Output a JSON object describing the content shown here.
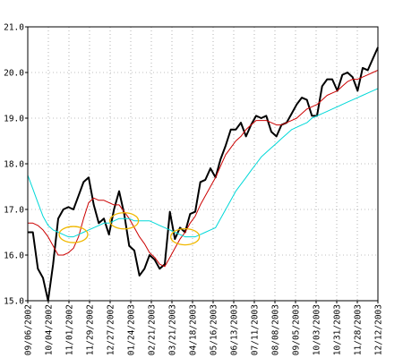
{
  "chart_data": {
    "type": "line",
    "title": "",
    "xlabel": "",
    "ylabel": "",
    "ylim": [
      15.0,
      21.0
    ],
    "yticks": [
      15.0,
      16.0,
      17.0,
      18.0,
      19.0,
      20.0,
      21.0
    ],
    "ytick_labels": [
      "15.0",
      "16.0",
      "17.0",
      "18.0",
      "19.0",
      "20.0",
      "21.0"
    ],
    "xtick_labels": [
      "09/06/2002",
      "10/04/2002",
      "11/01/2002",
      "11/29/2002",
      "12/27/2002",
      "01/24/2003",
      "02/21/2003",
      "03/21/2003",
      "04/18/2003",
      "05/16/2003",
      "06/13/2003",
      "07/11/2003",
      "08/08/2003",
      "09/05/2003",
      "10/03/2003",
      "10/31/2003",
      "11/28/2003",
      "12/12/2003"
    ],
    "grid": true,
    "legend": "none",
    "series": [
      {
        "color": "#000000",
        "width": 2,
        "values": [
          16.5,
          16.5,
          15.7,
          15.5,
          15.0,
          15.8,
          16.8,
          17.0,
          17.05,
          17.0,
          17.3,
          17.6,
          17.7,
          17.1,
          16.7,
          16.8,
          16.45,
          17.0,
          17.4,
          16.9,
          16.2,
          16.1,
          15.55,
          15.7,
          16.0,
          15.9,
          15.7,
          15.8,
          16.95,
          16.35,
          16.6,
          16.5,
          16.9,
          16.95,
          17.6,
          17.65,
          17.9,
          17.7,
          18.1,
          18.4,
          18.75,
          18.75,
          18.9,
          18.6,
          18.85,
          19.05,
          19.0,
          19.05,
          18.7,
          18.6,
          18.85,
          18.9,
          19.1,
          19.3,
          19.45,
          19.4,
          19.05,
          19.05,
          19.7,
          19.85,
          19.85,
          19.6,
          19.95,
          20.0,
          19.9,
          19.6,
          20.1,
          20.05,
          20.3,
          20.55
        ]
      },
      {
        "color": "#cc0000",
        "width": 1,
        "values": [
          16.7,
          16.7,
          16.65,
          16.55,
          16.4,
          16.2,
          16.0,
          16.0,
          16.05,
          16.15,
          16.4,
          16.8,
          17.15,
          17.25,
          17.2,
          17.2,
          17.15,
          17.1,
          17.1,
          16.95,
          16.8,
          16.6,
          16.4,
          16.25,
          16.05,
          15.95,
          15.8,
          15.75,
          15.95,
          16.15,
          16.35,
          16.5,
          16.7,
          16.85,
          17.1,
          17.3,
          17.5,
          17.7,
          17.95,
          18.2,
          18.35,
          18.5,
          18.6,
          18.75,
          18.85,
          18.95,
          18.95,
          18.95,
          18.9,
          18.85,
          18.85,
          18.9,
          18.95,
          19.0,
          19.1,
          19.2,
          19.25,
          19.3,
          19.4,
          19.5,
          19.55,
          19.6,
          19.7,
          19.8,
          19.85,
          19.85,
          19.9,
          19.95,
          20.0,
          20.05
        ]
      },
      {
        "color": "#00d8d8",
        "width": 1,
        "values": [
          17.75,
          17.45,
          17.15,
          16.85,
          16.65,
          16.55,
          16.5,
          16.45,
          16.4,
          16.4,
          16.45,
          16.5,
          16.55,
          16.6,
          16.65,
          16.7,
          16.7,
          16.75,
          16.8,
          16.8,
          16.8,
          16.75,
          16.75,
          16.75,
          16.75,
          16.7,
          16.65,
          16.6,
          16.55,
          16.5,
          16.45,
          16.4,
          16.4,
          16.4,
          16.45,
          16.5,
          16.55,
          16.6,
          16.8,
          17.0,
          17.2,
          17.4,
          17.55,
          17.7,
          17.85,
          18.0,
          18.15,
          18.25,
          18.35,
          18.45,
          18.55,
          18.65,
          18.75,
          18.8,
          18.85,
          18.9,
          19.0,
          19.05,
          19.1,
          19.15,
          19.2,
          19.25,
          19.3,
          19.35,
          19.4,
          19.45,
          19.5,
          19.55,
          19.6,
          19.65
        ]
      }
    ],
    "annotations": [
      {
        "shape": "ellipse",
        "color": "#f0b800",
        "x_index": 9,
        "y": 16.45
      },
      {
        "shape": "ellipse",
        "color": "#f0b800",
        "x_index": 19,
        "y": 16.75
      },
      {
        "shape": "ellipse",
        "color": "#f0b800",
        "x_index": 31,
        "y": 16.4
      }
    ]
  }
}
